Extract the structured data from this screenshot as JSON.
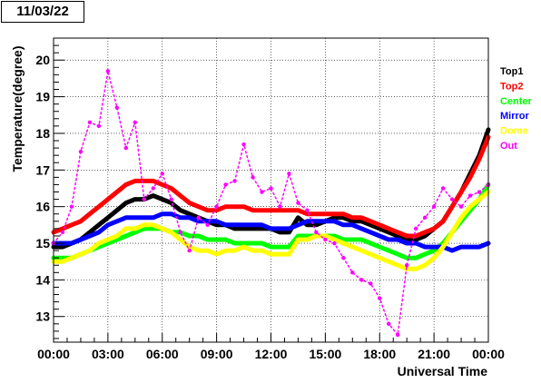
{
  "header": {
    "date": "11/03/22"
  },
  "chart_data": {
    "type": "scatter",
    "title": "",
    "xlabel": "Universal Time",
    "ylabel": "Temperature(degree)",
    "xlim": [
      0,
      24
    ],
    "ylim": [
      12.3,
      20.6
    ],
    "grid": true,
    "legend_position": "right",
    "x_ticks": [
      0,
      3,
      6,
      9,
      12,
      15,
      18,
      21,
      24
    ],
    "x_tick_labels": [
      "00:00",
      "03:00",
      "06:00",
      "09:00",
      "12:00",
      "15:00",
      "18:00",
      "21:00",
      "00:00"
    ],
    "y_ticks": [
      13,
      14,
      15,
      16,
      17,
      18,
      19,
      20
    ],
    "y_tick_labels": [
      "13",
      "14",
      "15",
      "16",
      "17",
      "18",
      "19",
      "20"
    ],
    "series": [
      {
        "name": "Top1",
        "color": "#000000",
        "x": [
          0,
          0.5,
          1,
          1.5,
          2,
          2.5,
          3,
          3.5,
          4,
          4.5,
          5,
          5.5,
          6,
          6.5,
          7,
          7.5,
          8,
          8.5,
          9,
          9.5,
          10,
          10.5,
          11,
          11.5,
          12,
          12.5,
          13,
          13.5,
          14,
          14.5,
          15,
          15.5,
          16,
          16.5,
          17,
          17.5,
          18,
          18.5,
          19,
          19.5,
          20,
          20.5,
          21,
          21.5,
          22,
          22.5,
          23,
          23.5,
          24
        ],
        "y": [
          14.9,
          14.9,
          15.0,
          15.1,
          15.3,
          15.5,
          15.7,
          15.9,
          16.1,
          16.2,
          16.2,
          16.3,
          16.2,
          16.1,
          15.9,
          15.8,
          15.7,
          15.6,
          15.5,
          15.5,
          15.4,
          15.4,
          15.4,
          15.4,
          15.4,
          15.3,
          15.3,
          15.7,
          15.5,
          15.5,
          15.6,
          15.7,
          15.7,
          15.6,
          15.6,
          15.5,
          15.4,
          15.3,
          15.2,
          15.1,
          15.1,
          15.2,
          15.4,
          15.6,
          16.0,
          16.4,
          16.9,
          17.4,
          18.1
        ]
      },
      {
        "name": "Top2",
        "color": "#ff0000",
        "x": [
          0,
          0.5,
          1,
          1.5,
          2,
          2.5,
          3,
          3.5,
          4,
          4.5,
          5,
          5.5,
          6,
          6.5,
          7,
          7.5,
          8,
          8.5,
          9,
          9.5,
          10,
          10.5,
          11,
          11.5,
          12,
          12.5,
          13,
          13.5,
          14,
          14.5,
          15,
          15.5,
          16,
          16.5,
          17,
          17.5,
          18,
          18.5,
          19,
          19.5,
          20,
          20.5,
          21,
          21.5,
          22,
          22.5,
          23,
          23.5,
          24
        ],
        "y": [
          15.3,
          15.4,
          15.5,
          15.6,
          15.8,
          16.0,
          16.2,
          16.4,
          16.6,
          16.7,
          16.7,
          16.7,
          16.6,
          16.5,
          16.3,
          16.1,
          16.0,
          15.9,
          15.9,
          16.0,
          16.0,
          16.0,
          15.9,
          15.9,
          15.9,
          15.9,
          15.9,
          15.9,
          15.8,
          15.8,
          15.8,
          15.8,
          15.8,
          15.7,
          15.7,
          15.6,
          15.5,
          15.4,
          15.3,
          15.2,
          15.2,
          15.3,
          15.4,
          15.6,
          16.0,
          16.4,
          16.8,
          17.3,
          17.9
        ]
      },
      {
        "name": "Center",
        "color": "#00ff00",
        "x": [
          0,
          0.5,
          1,
          1.5,
          2,
          2.5,
          3,
          3.5,
          4,
          4.5,
          5,
          5.5,
          6,
          6.5,
          7,
          7.5,
          8,
          8.5,
          9,
          9.5,
          10,
          10.5,
          11,
          11.5,
          12,
          12.5,
          13,
          13.5,
          14,
          14.5,
          15,
          15.5,
          16,
          16.5,
          17,
          17.5,
          18,
          18.5,
          19,
          19.5,
          20,
          20.5,
          21,
          21.5,
          22,
          22.5,
          23,
          23.5,
          24
        ],
        "y": [
          14.6,
          14.6,
          14.6,
          14.7,
          14.8,
          14.9,
          15.0,
          15.1,
          15.2,
          15.3,
          15.4,
          15.4,
          15.4,
          15.3,
          15.3,
          15.2,
          15.2,
          15.1,
          15.1,
          15.1,
          15.0,
          15.0,
          15.0,
          15.0,
          14.9,
          14.9,
          14.9,
          15.2,
          15.2,
          15.2,
          15.2,
          15.2,
          15.1,
          15.1,
          15.1,
          15.0,
          14.9,
          14.8,
          14.7,
          14.6,
          14.6,
          14.7,
          14.8,
          15.0,
          15.3,
          15.6,
          15.9,
          16.2,
          16.6
        ]
      },
      {
        "name": "Mirror",
        "color": "#0000ff",
        "x": [
          0,
          0.5,
          1,
          1.5,
          2,
          2.5,
          3,
          3.5,
          4,
          4.5,
          5,
          5.5,
          6,
          6.5,
          7,
          7.5,
          8,
          8.5,
          9,
          9.5,
          10,
          10.5,
          11,
          11.5,
          12,
          12.5,
          13,
          13.5,
          14,
          14.5,
          15,
          15.5,
          16,
          16.5,
          17,
          17.5,
          18,
          18.5,
          19,
          19.5,
          20,
          20.5,
          21,
          21.5,
          22,
          22.5,
          23,
          23.5,
          24
        ],
        "y": [
          15.0,
          15.0,
          15.0,
          15.1,
          15.2,
          15.3,
          15.5,
          15.6,
          15.7,
          15.7,
          15.7,
          15.7,
          15.8,
          15.8,
          15.7,
          15.7,
          15.6,
          15.6,
          15.6,
          15.5,
          15.5,
          15.5,
          15.5,
          15.5,
          15.4,
          15.4,
          15.4,
          15.5,
          15.6,
          15.6,
          15.6,
          15.6,
          15.5,
          15.5,
          15.4,
          15.3,
          15.2,
          15.1,
          15.1,
          15.0,
          15.0,
          14.9,
          14.9,
          14.9,
          14.8,
          14.9,
          14.9,
          14.9,
          15.0
        ]
      },
      {
        "name": "Dome",
        "color": "#ffff00",
        "x": [
          0,
          0.5,
          1,
          1.5,
          2,
          2.5,
          3,
          3.5,
          4,
          4.5,
          5,
          5.5,
          6,
          6.5,
          7,
          7.5,
          8,
          8.5,
          9,
          9.5,
          10,
          10.5,
          11,
          11.5,
          12,
          12.5,
          13,
          13.5,
          14,
          14.5,
          15,
          15.5,
          16,
          16.5,
          17,
          17.5,
          18,
          18.5,
          19,
          19.5,
          20,
          20.5,
          21,
          21.5,
          22,
          22.5,
          23,
          23.5,
          24
        ],
        "y": [
          14.5,
          14.5,
          14.6,
          14.7,
          14.8,
          15.0,
          15.1,
          15.2,
          15.4,
          15.4,
          15.5,
          15.5,
          15.4,
          15.3,
          15.1,
          14.9,
          14.8,
          14.8,
          14.7,
          14.8,
          14.8,
          14.9,
          14.8,
          14.8,
          14.7,
          14.7,
          14.7,
          15.1,
          15.1,
          15.2,
          15.2,
          15.1,
          15.0,
          14.9,
          14.8,
          14.7,
          14.6,
          14.5,
          14.4,
          14.3,
          14.3,
          14.4,
          14.6,
          14.9,
          15.3,
          15.7,
          16.0,
          16.2,
          16.4
        ]
      },
      {
        "name": "Out",
        "color": "#ff00ff",
        "x": [
          0,
          0.5,
          1,
          1.5,
          2,
          2.5,
          3,
          3.5,
          4,
          4.5,
          5,
          5.5,
          6,
          6.5,
          7,
          7.5,
          8,
          8.5,
          9,
          9.5,
          10,
          10.5,
          11,
          11.5,
          12,
          12.5,
          13,
          13.5,
          14,
          14.5,
          15,
          15.5,
          16,
          16.5,
          17,
          17.5,
          18,
          18.5,
          19,
          19.5,
          20,
          20.5,
          21,
          21.5,
          22,
          22.5,
          23,
          23.5,
          24
        ],
        "y": [
          15.0,
          15.3,
          16.0,
          17.5,
          18.3,
          18.2,
          19.7,
          18.7,
          17.6,
          18.3,
          16.2,
          16.5,
          16.9,
          16.2,
          15.3,
          14.8,
          15.7,
          15.5,
          16.0,
          16.6,
          16.7,
          17.7,
          16.8,
          16.4,
          16.5,
          16.0,
          16.9,
          16.1,
          15.9,
          15.3,
          15.1,
          15.0,
          14.6,
          14.2,
          14.0,
          13.9,
          13.5,
          12.8,
          12.5,
          14.4,
          15.4,
          15.7,
          16.0,
          16.5,
          16.2,
          16.0,
          16.3,
          16.4,
          16.6
        ]
      }
    ]
  }
}
